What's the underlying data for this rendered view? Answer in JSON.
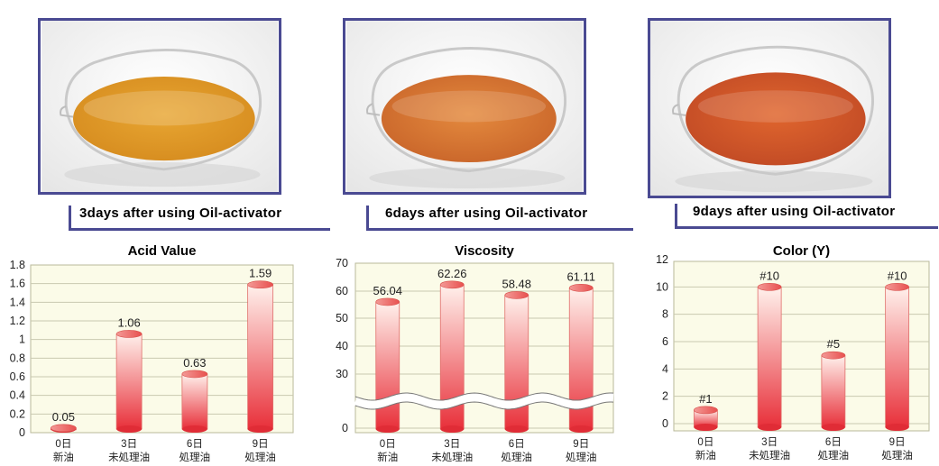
{
  "photos": [
    {
      "caption": "3days after using Oil-activator",
      "oil_color": "#e8a632",
      "oil_edge": "#d68c1f"
    },
    {
      "caption": "6days after using Oil-activator",
      "oil_color": "#e48a3e",
      "oil_edge": "#c9652a"
    },
    {
      "caption": "9days after using Oil-activator",
      "oil_color": "#e0662e",
      "oil_edge": "#c14a25"
    }
  ],
  "chart_data": [
    {
      "type": "bar",
      "title": "Acid Value",
      "categories": [
        [
          "0日",
          "新油"
        ],
        [
          "3日",
          "未処理油"
        ],
        [
          "6日",
          "処理油"
        ],
        [
          "9日",
          "処理油"
        ]
      ],
      "values": [
        0.05,
        1.06,
        0.63,
        1.59
      ],
      "value_labels": [
        "0.05",
        "1.06",
        "0.63",
        "1.59"
      ],
      "yticks": [
        "0",
        "0.2",
        "0.4",
        "0.6",
        "0.8",
        "1",
        "1.2",
        "1.4",
        "1.6",
        "1.8"
      ],
      "ylim": [
        0,
        1.8
      ],
      "grid": true
    },
    {
      "type": "bar",
      "title": "Viscosity",
      "categories": [
        [
          "0日",
          "新油"
        ],
        [
          "3日",
          "未処理油"
        ],
        [
          "6日",
          "処理油"
        ],
        [
          "9日",
          "処理油"
        ]
      ],
      "values": [
        56.04,
        62.26,
        58.48,
        61.11
      ],
      "value_labels": [
        "56.04",
        "62.26",
        "58.48",
        "61.11"
      ],
      "yticks": [
        "0",
        "30",
        "40",
        "50",
        "60",
        "70"
      ],
      "axis_break": true,
      "grid": true
    },
    {
      "type": "bar",
      "title": "Color (Y)",
      "categories": [
        [
          "0日",
          "新油"
        ],
        [
          "3日",
          "未処理油"
        ],
        [
          "6日",
          "処理油"
        ],
        [
          "9日",
          "処理油"
        ]
      ],
      "values": [
        1,
        10,
        5,
        10
      ],
      "value_labels": [
        "#1",
        "#10",
        "#5",
        "#10"
      ],
      "yticks": [
        "0",
        "2",
        "4",
        "6",
        "8",
        "10",
        "12"
      ],
      "ylim": [
        0,
        12
      ],
      "grid": true
    }
  ],
  "colors": {
    "frame": "#4a4a92",
    "plot_bg": "#fbfbe8",
    "grid": "#c9c9b0",
    "bar_top": "#fff1ec",
    "bar_bottom": "#e8303a"
  }
}
